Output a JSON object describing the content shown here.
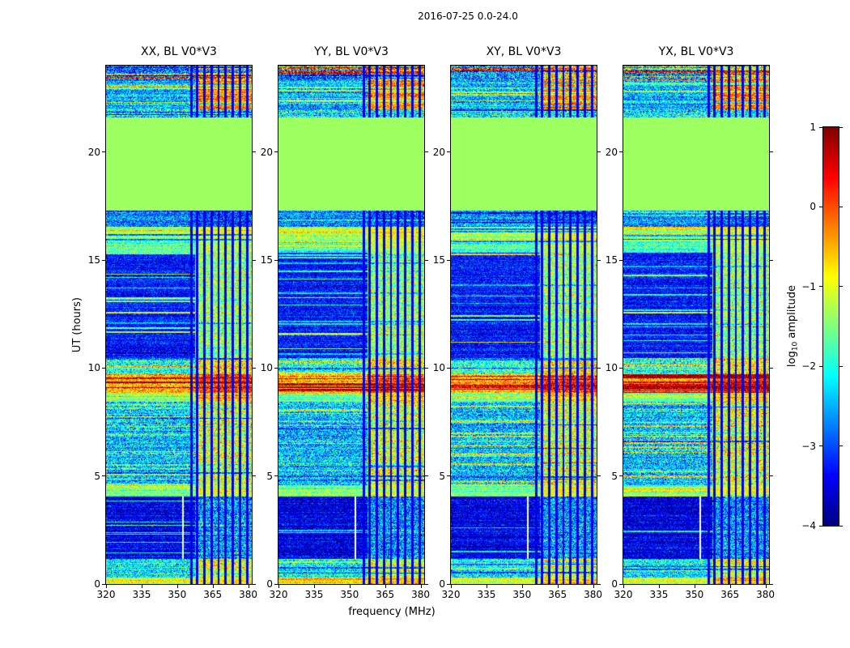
{
  "figure": {
    "suptitle": "2016-07-25 0.0-24.0",
    "xlabel": "frequency (MHz)",
    "ylabel": "UT (hours)",
    "colorbar": {
      "label_prefix": "log",
      "label_sub": "10",
      "label_suffix": " amplitude"
    }
  },
  "chart_data": {
    "type": "heatmap",
    "title": "2016-07-25 0.0-24.0",
    "xlabel": "frequency (MHz)",
    "ylabel": "UT (hours)",
    "colormap": "jet",
    "panels": [
      {
        "title": "XX, BL V0*V3",
        "seed": 11
      },
      {
        "title": "YY, BL V0*V3",
        "seed": 23
      },
      {
        "title": "XY, BL V0*V3",
        "seed": 37
      },
      {
        "title": "YX, BL V0*V3",
        "seed": 51
      }
    ],
    "x": {
      "min": 320,
      "max": 381.5,
      "ticks": [
        320,
        335,
        350,
        365,
        380
      ]
    },
    "y": {
      "min": 0,
      "max": 24,
      "ticks": [
        0,
        5,
        10,
        15,
        20
      ]
    },
    "color": {
      "min": -4,
      "max": 1,
      "ticks": [
        1,
        0,
        -1,
        -2,
        -3,
        -4
      ],
      "label": "log10 amplitude"
    },
    "features": {
      "high_freq_edge_mhz": 357.5,
      "rfi_comb_mhz": [
        356.0,
        358.5,
        361.5,
        364.5,
        367.5,
        370.5,
        373.5,
        376.5,
        379.5
      ],
      "masked_line_mhz": 352.3,
      "flat_fill_value": -1.35
    },
    "time_bands": [
      {
        "t0": 0.0,
        "t1": 0.3,
        "low": -1.2,
        "high": -0.55,
        "noise": 0.3,
        "stripe_prob": 0.55,
        "stripe_values": [
          -0.6,
          -1.0
        ]
      },
      {
        "t0": 0.3,
        "t1": 1.15,
        "low": -2.2,
        "high": -1.0,
        "noise": 0.5,
        "stripe_prob": 0.35,
        "stripe_values": [
          -1.4,
          -1.9,
          -2.9
        ]
      },
      {
        "t0": 1.15,
        "t1": 4.05,
        "low": -3.5,
        "high": -2.6,
        "noise": 0.35,
        "noise_high": 0.6,
        "stripe_prob": 0.09,
        "stripe_values": [
          -1.8,
          -2.2
        ],
        "masked_line": true
      },
      {
        "t0": 4.05,
        "t1": 4.55,
        "low": -1.7,
        "high": -0.9,
        "noise": 0.3,
        "stripe_prob": 0.5,
        "stripe_values": [
          -1.0,
          -1.4
        ]
      },
      {
        "t0": 4.55,
        "t1": 8.45,
        "low": -2.4,
        "high": -1.05,
        "noise": 0.55,
        "stripe_prob": 0.3,
        "stripe_values": [
          -1.3,
          -1.8,
          -0.8,
          -3.0
        ]
      },
      {
        "t0": 8.45,
        "t1": 8.85,
        "low": -1.6,
        "high": -0.6,
        "noise": 0.35,
        "stripe_prob": 0.5,
        "stripe_values": [
          -0.8,
          -1.1
        ]
      },
      {
        "t0": 8.85,
        "t1": 9.7,
        "low": -0.5,
        "high": 0.1,
        "noise": 0.45,
        "stripe_prob": 0.6,
        "stripe_values": [
          1.0,
          0.9,
          0.55
        ]
      },
      {
        "t0": 9.7,
        "t1": 10.45,
        "low": -2.0,
        "high": -0.8,
        "noise": 0.5,
        "stripe_prob": 0.4,
        "stripe_values": [
          -1.1,
          -0.65,
          -2.9
        ]
      },
      {
        "t0": 10.45,
        "t1": 15.35,
        "low": -3.3,
        "high": -1.4,
        "noise": 0.35,
        "noise_high": 0.5,
        "stripe_prob": 0.22,
        "stripe_values": [
          -2.0,
          -1.5,
          -2.4,
          -1.0
        ]
      },
      {
        "t0": 15.35,
        "t1": 15.85,
        "low": -1.9,
        "high": -1.3,
        "noise": 0.35,
        "stripe_prob": 0.5,
        "stripe_values": [
          -1.2,
          -1.6
        ]
      },
      {
        "t0": 15.85,
        "t1": 16.55,
        "low": -1.4,
        "high": -1.0,
        "noise": 0.3,
        "stripe_prob": 0.55,
        "stripe_values": [
          -0.65,
          -0.9,
          -2.7
        ]
      },
      {
        "t0": 16.55,
        "t1": 17.3,
        "low": -2.7,
        "high": -3.0,
        "noise": 0.5,
        "stripe_prob": 0.3,
        "stripe_values": [
          -3.5,
          -2.1
        ]
      },
      {
        "t0": 17.3,
        "t1": 21.6,
        "flat": -1.35
      },
      {
        "t0": 21.6,
        "t1": 22.0,
        "low": -2.2,
        "high": -2.2,
        "noise": 0.6,
        "stripe_prob": 0.5,
        "stripe_values": [
          -3.4,
          -1.4,
          -1.9
        ]
      },
      {
        "t0": 22.0,
        "t1": 23.35,
        "low": -2.5,
        "high": -0.3,
        "noise": 0.5,
        "noise_high": 0.4,
        "stripe_prob": 0.3,
        "stripe_values": [
          -1.3,
          -0.8,
          -2.0
        ]
      },
      {
        "t0": 23.35,
        "t1": 24.01,
        "low": -2.7,
        "high": -0.8,
        "noise": 0.7,
        "stripe_prob": 0.75,
        "stripe_values": [
          0.6,
          -1.0,
          -3.5,
          -1.6,
          -3.0,
          0.2
        ]
      }
    ]
  }
}
